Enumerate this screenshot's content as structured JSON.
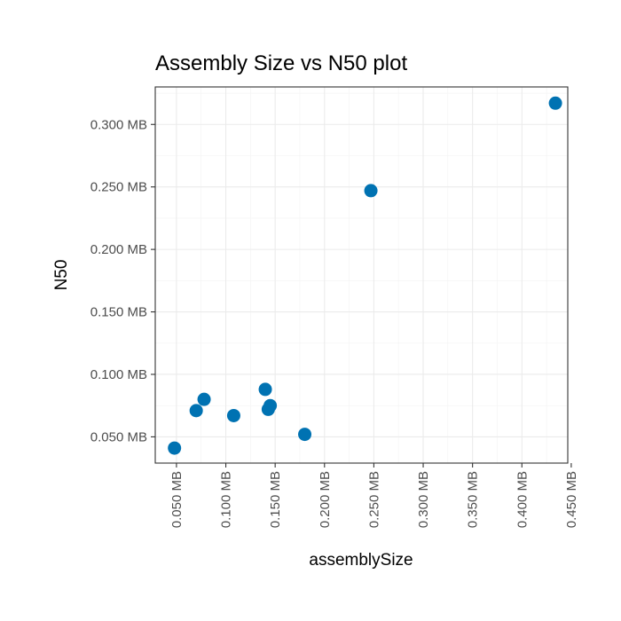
{
  "chart_data": {
    "type": "scatter",
    "title": "Assembly Size vs N50 plot",
    "xlabel": "assemblySize",
    "ylabel": "N50",
    "xlim": [
      0.0285,
      0.4465
    ],
    "ylim": [
      0.029,
      0.33
    ],
    "x_ticks": [
      0.05,
      0.1,
      0.15,
      0.2,
      0.25,
      0.3,
      0.35,
      0.4,
      0.45
    ],
    "x_tick_labels": [
      "0.050 MB",
      "0.100 MB",
      "0.150 MB",
      "0.200 MB",
      "0.250 MB",
      "0.300 MB",
      "0.350 MB",
      "0.400 MB",
      "0.450 MB"
    ],
    "y_ticks": [
      0.05,
      0.1,
      0.15,
      0.2,
      0.25,
      0.3
    ],
    "y_tick_labels": [
      "0.050 MB",
      "0.100 MB",
      "0.150 MB",
      "0.200 MB",
      "0.250 MB",
      "0.300 MB"
    ],
    "grid": true,
    "point_color": "#0072B2",
    "points": [
      {
        "x": 0.048,
        "y": 0.041
      },
      {
        "x": 0.07,
        "y": 0.071
      },
      {
        "x": 0.078,
        "y": 0.08
      },
      {
        "x": 0.108,
        "y": 0.067
      },
      {
        "x": 0.14,
        "y": 0.088
      },
      {
        "x": 0.143,
        "y": 0.072
      },
      {
        "x": 0.145,
        "y": 0.075
      },
      {
        "x": 0.18,
        "y": 0.052
      },
      {
        "x": 0.247,
        "y": 0.247
      },
      {
        "x": 0.434,
        "y": 0.317
      }
    ]
  }
}
